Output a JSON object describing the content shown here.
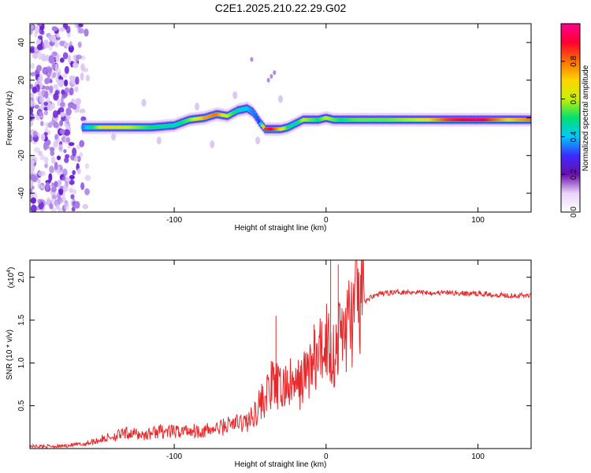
{
  "title": "C2E1.2025.210.22.29.G02",
  "chart_data": [
    {
      "type": "heatmap",
      "xlabel": "Height of straight line (km)",
      "ylabel": "Frequency (Hz)",
      "xlim": [
        -195,
        135
      ],
      "ylim": [
        -50,
        50
      ],
      "xticks": [
        -100,
        0,
        100
      ],
      "yticks": [
        -40,
        -20,
        0,
        20,
        40
      ],
      "colorbar": {
        "label": "Normalized spectral amplitude",
        "ticks": [
          0.0,
          0.2,
          0.4,
          0.6,
          0.8
        ],
        "range": [
          0,
          1
        ],
        "stops": [
          "#ffffff",
          "#e8d4f8",
          "#6a0dad",
          "#3b2bff",
          "#00c8ff",
          "#00e070",
          "#c8f000",
          "#ffd400",
          "#ff7000",
          "#ff0030",
          "#ff0090"
        ]
      },
      "ridge": {
        "x": [
          -160,
          -145,
          -130,
          -115,
          -100,
          -90,
          -80,
          -72,
          -65,
          -58,
          -52,
          -48,
          -44,
          -40,
          -36,
          -30,
          -25,
          -20,
          -15,
          -10,
          -5,
          0,
          5,
          10,
          20,
          40,
          60,
          80,
          100,
          120,
          135
        ],
        "y": [
          -5,
          -5,
          -5,
          -5,
          -4,
          -1,
          0,
          2,
          1,
          4,
          5,
          3,
          -2,
          -6,
          -6,
          -6,
          -5,
          -3,
          -1,
          -1,
          -1,
          0,
          -1,
          -1,
          -1,
          -1,
          -1,
          -1,
          -1,
          -1,
          -1
        ],
        "amplitude": [
          0.35,
          0.7,
          0.6,
          0.5,
          0.45,
          0.55,
          0.75,
          0.8,
          0.6,
          0.45,
          0.4,
          0.35,
          0.3,
          0.85,
          0.9,
          0.7,
          0.5,
          0.45,
          0.6,
          0.55,
          0.5,
          0.6,
          0.55,
          0.5,
          0.55,
          0.55,
          0.6,
          0.85,
          0.95,
          0.7,
          0.8
        ]
      },
      "noise_region_x": [
        -195,
        -155
      ]
    },
    {
      "type": "line",
      "xlabel": "Height of straight line (km)",
      "ylabel": "SNR (10 * v/v)",
      "scale_label": "(x10",
      "scale_exponent": "4",
      "xlim": [
        -195,
        135
      ],
      "ylim": [
        0,
        2.2
      ],
      "xticks": [
        -100,
        0,
        100
      ],
      "yticks": [
        0.5,
        1.0,
        1.5,
        2.0
      ],
      "color": "#e8282a",
      "series": [
        {
          "x": [
            -195,
            -175,
            -160,
            -150,
            -140,
            -130,
            -120,
            -110,
            -100,
            -90,
            -80,
            -70,
            -60,
            -50,
            -45,
            -40,
            -35,
            -30,
            -25,
            -20,
            -15,
            -10,
            -5,
            0,
            5,
            10,
            15,
            20,
            25,
            30,
            35,
            40,
            50,
            60,
            70,
            80,
            90,
            100,
            110,
            120,
            135
          ],
          "values": [
            0.02,
            0.02,
            0.04,
            0.08,
            0.12,
            0.15,
            0.13,
            0.17,
            0.16,
            0.18,
            0.17,
            0.2,
            0.26,
            0.3,
            0.45,
            0.55,
            0.7,
            0.62,
            0.7,
            0.65,
            0.75,
            0.9,
            0.95,
            1.2,
            1.0,
            1.25,
            1.35,
            1.55,
            1.7,
            1.78,
            1.8,
            1.82,
            1.83,
            1.83,
            1.82,
            1.82,
            1.81,
            1.81,
            1.8,
            1.79,
            1.79
          ]
        }
      ]
    }
  ]
}
